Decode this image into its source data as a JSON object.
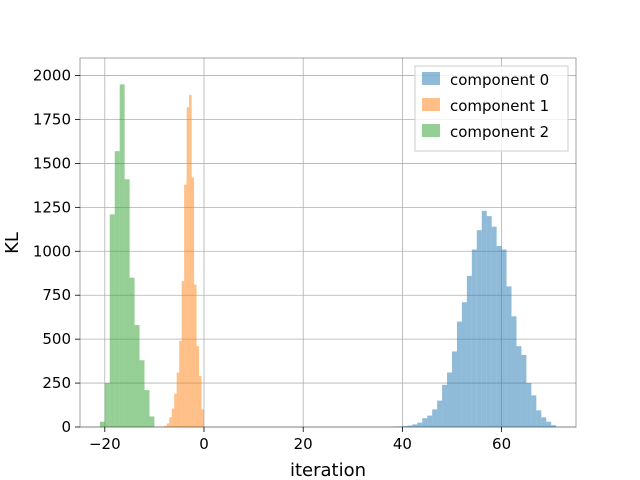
{
  "chart_data": {
    "type": "histogram",
    "xlabel": "iteration",
    "ylabel": "KL",
    "xlim": [
      -25,
      75
    ],
    "ylim": [
      0,
      2100
    ],
    "xticks": [
      -20,
      0,
      20,
      40,
      60
    ],
    "yticks": [
      0,
      250,
      500,
      750,
      1000,
      1250,
      1500,
      1750,
      2000
    ],
    "grid": true,
    "legend_position": "top-right",
    "series": [
      {
        "name": "component 0",
        "color": "#1f77b4",
        "bin_edges": [
          38,
          39,
          40,
          41,
          42,
          43,
          44,
          45,
          46,
          47,
          48,
          49,
          50,
          51,
          52,
          53,
          54,
          55,
          56,
          57,
          58,
          59,
          60,
          61,
          62,
          63,
          64,
          65,
          66,
          67,
          68,
          69,
          70,
          71
        ],
        "counts": [
          2,
          3,
          5,
          8,
          15,
          25,
          50,
          65,
          100,
          150,
          240,
          310,
          430,
          600,
          710,
          860,
          1010,
          1120,
          1230,
          1200,
          1140,
          1030,
          1010,
          800,
          630,
          460,
          410,
          250,
          180,
          95,
          55,
          30,
          10
        ]
      },
      {
        "name": "component 1",
        "color": "#ff7f0e",
        "bin_edges": [
          -8.0,
          -7.5,
          -7.0,
          -6.5,
          -6.0,
          -5.5,
          -5.0,
          -4.5,
          -4.0,
          -3.5,
          -3.0,
          -2.5,
          -2.0,
          -1.5,
          -1.0,
          -0.5,
          0.0
        ],
        "counts": [
          5,
          20,
          55,
          105,
          190,
          310,
          490,
          830,
          1380,
          1820,
          1890,
          1420,
          810,
          460,
          290,
          100
        ]
      },
      {
        "name": "component 2",
        "color": "#2ca02c",
        "bin_edges": [
          -21.0,
          -20.0,
          -19.0,
          -18.0,
          -17.0,
          -16.0,
          -15.0,
          -14.0,
          -13.0,
          -12.0,
          -11.0,
          -10.0
        ],
        "counts": [
          30,
          250,
          1210,
          1570,
          1950,
          1410,
          850,
          580,
          380,
          210,
          60
        ]
      }
    ]
  }
}
